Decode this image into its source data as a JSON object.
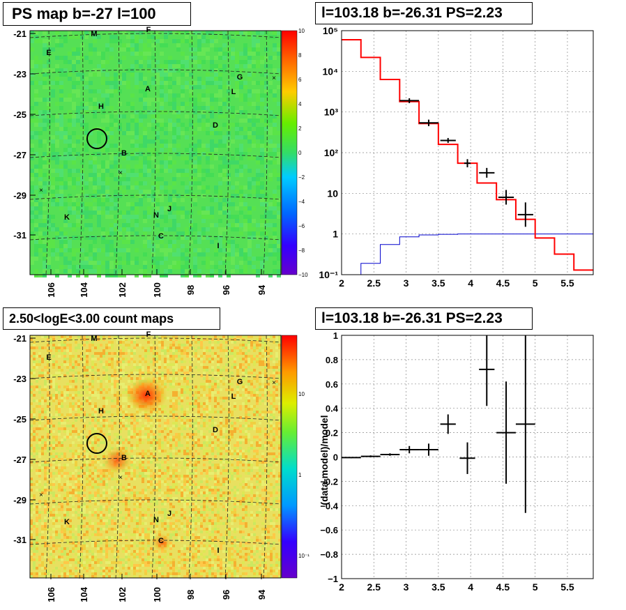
{
  "panels": {
    "ps_map": {
      "title": "PS map b=-27 l=100"
    },
    "counts_map": {
      "title": "2.50<logE<3.00 count maps"
    },
    "spectrum": {
      "title": "l=103.18 b=-26.31 PS=2.23"
    },
    "residual": {
      "title": "l=103.18 b=-26.31 PS=2.23"
    }
  },
  "colors": {
    "model": "#ff0000",
    "background": "#0000cc",
    "data": "#000000"
  },
  "chart_data": [
    {
      "id": "ps_map",
      "type": "heatmap",
      "title": "PS map b=-27 l=100",
      "x_ticks": [
        "106",
        "104",
        "102",
        "100",
        "98",
        "96",
        "94"
      ],
      "y_ticks": [
        "-21",
        "-23",
        "-25",
        "-27",
        "-29",
        "-31"
      ],
      "colorbar_ticks": [
        "10",
        "8",
        "6",
        "4",
        "2",
        "0",
        "−2",
        "−4",
        "−6",
        "−8",
        "−10"
      ],
      "sources": [
        "M",
        "F",
        "E",
        "G",
        "L",
        "A",
        "H",
        "D",
        "B",
        "K",
        "N",
        "J",
        "C",
        "I"
      ]
    },
    {
      "id": "counts_map",
      "type": "heatmap",
      "title": "2.50<logE<3.00 count maps",
      "x_ticks": [
        "106",
        "104",
        "102",
        "100",
        "98",
        "96",
        "94"
      ],
      "y_ticks": [
        "-21",
        "-23",
        "-25",
        "-27",
        "-29",
        "-31"
      ],
      "colorbar_ticks": [
        "10",
        "1",
        "10⁻¹"
      ],
      "sources": [
        "M",
        "F",
        "E",
        "G",
        "L",
        "A",
        "H",
        "D",
        "B",
        "K",
        "N",
        "J",
        "C",
        "I"
      ]
    },
    {
      "id": "spectrum",
      "type": "line",
      "title": "l=103.18 b=-26.31 PS=2.23",
      "xlim": [
        2,
        5.9
      ],
      "ylim": [
        0.1,
        100000
      ],
      "log_y": true,
      "grid": true,
      "x_ticks": [
        "2",
        "2.5",
        "3",
        "3.5",
        "4",
        "4.5",
        "5",
        "5.5"
      ],
      "y_ticks": [
        {
          "label": "10⁵",
          "value": 100000
        },
        {
          "label": "10⁴",
          "value": 10000
        },
        {
          "label": "10³",
          "value": 1000
        },
        {
          "label": "10²",
          "value": 100
        },
        {
          "label": "10",
          "value": 10
        },
        {
          "label": "1",
          "value": 1
        },
        {
          "label": "10⁻¹",
          "value": 0.1
        }
      ],
      "bin_edges": [
        2.0,
        2.3,
        2.6,
        2.9,
        3.2,
        3.5,
        3.8,
        4.1,
        4.4,
        4.7,
        5.0,
        5.3,
        5.6,
        5.9
      ],
      "model_values": [
        60000,
        22000,
        6300,
        1800,
        520,
        160,
        55,
        18,
        7,
        2.3,
        0.8,
        0.32,
        0.13
      ],
      "background_values": [
        0.1,
        0.19,
        0.55,
        0.85,
        0.95,
        0.98,
        1,
        1,
        1,
        1,
        1,
        1,
        1
      ],
      "data_points": [
        {
          "x": 3.05,
          "y": 1900,
          "yerr": 0.06,
          "xerr": 0.15
        },
        {
          "x": 3.35,
          "y": 540,
          "yerr": 0.08,
          "xerr": 0.15
        },
        {
          "x": 3.65,
          "y": 200,
          "yerr": 0.06,
          "xerr": 0.12
        },
        {
          "x": 3.95,
          "y": 55,
          "yerr": 0.1,
          "xerr": 0.05
        },
        {
          "x": 4.25,
          "y": 32,
          "yerr": 0.12,
          "xerr": 0.12
        },
        {
          "x": 4.55,
          "y": 8,
          "yerr": 0.18,
          "xerr": 0.12
        },
        {
          "x": 4.85,
          "y": 3,
          "yerr": 0.3,
          "xerr": 0.12
        }
      ]
    },
    {
      "id": "residual",
      "type": "scatter",
      "title": "l=103.18 b=-26.31 PS=2.23",
      "ylabel": "(data-model)/model",
      "xlim": [
        2,
        5.9
      ],
      "ylim": [
        -1,
        1
      ],
      "grid": true,
      "x_ticks": [
        "2",
        "2.5",
        "3",
        "3.5",
        "4",
        "4.5",
        "5",
        "5.5"
      ],
      "y_ticks": [
        "1",
        "0.8",
        "0.6",
        "0.4",
        "0.2",
        "0",
        "−0.2",
        "−0.4",
        "−0.6",
        "−0.8",
        "−1"
      ],
      "points": [
        {
          "x": 2.15,
          "y": -0.005,
          "xerr": 0.15,
          "yerr": 0.005
        },
        {
          "x": 2.45,
          "y": 0.005,
          "xerr": 0.15,
          "yerr": 0.008
        },
        {
          "x": 2.75,
          "y": 0.02,
          "xerr": 0.15,
          "yerr": 0.01
        },
        {
          "x": 3.05,
          "y": 0.06,
          "xerr": 0.15,
          "yerr": 0.03
        },
        {
          "x": 3.35,
          "y": 0.06,
          "xerr": 0.15,
          "yerr": 0.05
        },
        {
          "x": 3.65,
          "y": 0.27,
          "xerr": 0.12,
          "yerr": 0.08
        },
        {
          "x": 3.95,
          "y": -0.01,
          "xerr": 0.12,
          "yerr": 0.13
        },
        {
          "x": 4.25,
          "y": 0.72,
          "xerr": 0.12,
          "yerr": 0.3
        },
        {
          "x": 4.55,
          "y": 0.2,
          "xerr": 0.15,
          "yerr": 0.42
        },
        {
          "x": 4.85,
          "y": 0.27,
          "xerr": 0.15,
          "yerr": 0.73
        }
      ]
    }
  ]
}
